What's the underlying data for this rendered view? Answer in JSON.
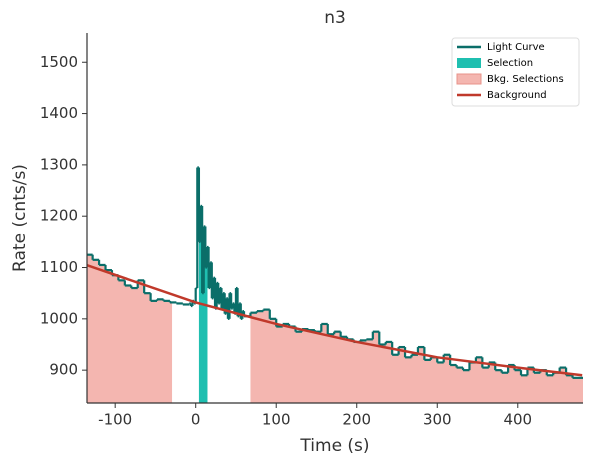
{
  "chart_data": {
    "type": "step",
    "title": "n3",
    "xlabel": "Time (s)",
    "ylabel": "Rate (cnts/s)",
    "xlim": [
      -135,
      481
    ],
    "ylim": [
      836,
      1557
    ],
    "xticks": [
      -100,
      0,
      100,
      200,
      300,
      400
    ],
    "yticks": [
      900,
      1000,
      1100,
      1200,
      1300,
      1400,
      1500
    ],
    "legend": "upper right",
    "series": [
      {
        "name": "Light Curve",
        "color": "#0a6e69",
        "x": [
          -136,
          -128,
          -120,
          -112,
          -104,
          -96,
          -88,
          -80,
          -72,
          -64,
          -56,
          -48,
          -40,
          -32,
          -24,
          -16,
          -8,
          -6,
          -4,
          -2,
          0,
          2,
          4,
          6,
          8,
          10,
          12,
          14,
          16,
          18,
          20,
          22,
          24,
          26,
          28,
          30,
          32,
          34,
          36,
          38,
          40,
          42,
          44,
          46,
          48,
          50,
          52,
          54,
          56,
          58,
          60,
          68,
          76,
          84,
          92,
          100,
          108,
          116,
          124,
          132,
          140,
          148,
          156,
          164,
          172,
          180,
          188,
          196,
          204,
          212,
          220,
          228,
          236,
          244,
          252,
          260,
          268,
          276,
          284,
          292,
          300,
          308,
          316,
          324,
          332,
          340,
          348,
          356,
          364,
          372,
          380,
          388,
          396,
          404,
          412,
          420,
          428,
          436,
          444,
          452,
          460,
          468
        ],
        "values": [
          1125,
          1115,
          1105,
          1095,
          1085,
          1075,
          1065,
          1060,
          1075,
          1050,
          1035,
          1038,
          1035,
          1032,
          1030,
          1028,
          1030,
          1025,
          1035,
          1030,
          1060,
          1295,
          1150,
          1220,
          1050,
          1180,
          1100,
          1140,
          1060,
          1110,
          1040,
          1080,
          1020,
          1070,
          1030,
          1060,
          1020,
          1050,
          1010,
          1040,
          1000,
          1050,
          1020,
          1030,
          1010,
          1060,
          1005,
          1030,
          1000,
          1015,
          1005,
          1012,
          1015,
          1018,
          1000,
          985,
          990,
          985,
          975,
          980,
          978,
          975,
          990,
          970,
          975,
          965,
          960,
          955,
          958,
          960,
          975,
          950,
          955,
          930,
          945,
          925,
          930,
          945,
          920,
          925,
          915,
          930,
          910,
          905,
          900,
          915,
          925,
          905,
          915,
          900,
          895,
          910,
          900,
          890,
          905,
          895,
          900,
          890,
          895,
          905,
          890,
          885
        ]
      },
      {
        "name": "Selection",
        "color": "#1fbfb0",
        "range": [
          4,
          14
        ]
      },
      {
        "name": "Bkg. Selections",
        "color": "#f4b6b0",
        "ranges": [
          [
            -136,
            -30
          ],
          [
            68,
            481
          ]
        ]
      },
      {
        "name": "Background",
        "color": "#c0392b",
        "x": [
          -136,
          0,
          100,
          200,
          300,
          400,
          480
        ],
        "values": [
          1105,
          1032,
          990,
          955,
          925,
          905,
          890
        ]
      }
    ]
  }
}
